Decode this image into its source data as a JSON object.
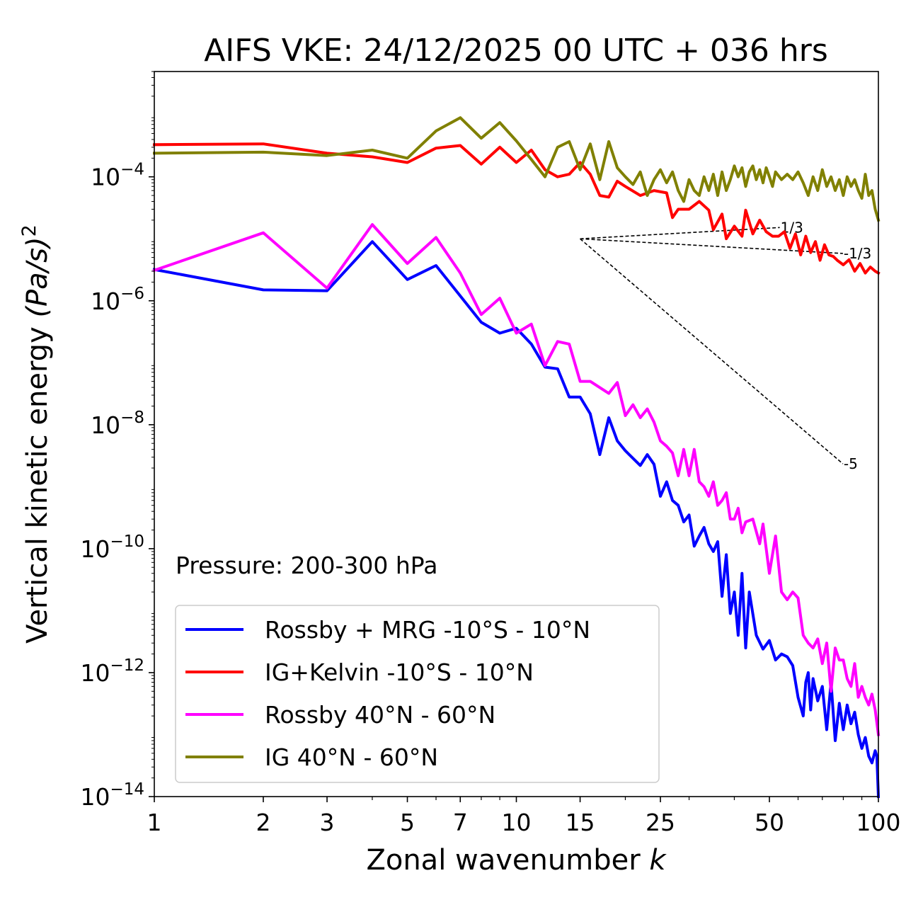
{
  "chart_data": {
    "type": "line",
    "title": "AIFS VKE: 24/12/2025 00 UTC + 036 hrs",
    "xlabel": "Zonal wavenumber",
    "xlabel_var": "k",
    "ylabel": "Vertical kinetic energy",
    "ylabel_unit": "(Pa/s)",
    "ylabel_sup": "2",
    "xscale": "log",
    "yscale": "log",
    "xlim": [
      1,
      100
    ],
    "ylim": [
      1e-14,
      0.005
    ],
    "x_ticks": [
      {
        "value": 1,
        "label": "1"
      },
      {
        "value": 2,
        "label": "2"
      },
      {
        "value": 3,
        "label": "3"
      },
      {
        "value": 5,
        "label": "5"
      },
      {
        "value": 7,
        "label": "7"
      },
      {
        "value": 10,
        "label": "10"
      },
      {
        "value": 15,
        "label": "15"
      },
      {
        "value": 25,
        "label": "25"
      },
      {
        "value": 50,
        "label": "50"
      },
      {
        "value": 100,
        "label": "100"
      }
    ],
    "y_ticks": [
      {
        "value": 1e-14,
        "base": "10",
        "exp": "−14"
      },
      {
        "value": 1e-12,
        "base": "10",
        "exp": "−12"
      },
      {
        "value": 1e-10,
        "base": "10",
        "exp": "−10"
      },
      {
        "value": 1e-08,
        "base": "10",
        "exp": "−8"
      },
      {
        "value": 1e-06,
        "base": "10",
        "exp": "−6"
      },
      {
        "value": 0.0001,
        "base": "10",
        "exp": "−4"
      }
    ],
    "annotation": "Pressure: 200-300 hPa",
    "legend_position": "lower-left",
    "series": [
      {
        "name": "Rossby + MRG -10°S - 10°N",
        "color": "#0000ff",
        "points": [
          [
            1,
            3.2e-06
          ],
          [
            2,
            1.5e-06
          ],
          [
            3,
            1.45e-06
          ],
          [
            4,
            9e-06
          ],
          [
            5,
            2.2e-06
          ],
          [
            6,
            3.7e-06
          ],
          [
            8,
            4.5e-07
          ],
          [
            9,
            3e-07
          ],
          [
            10,
            3.6e-07
          ],
          [
            11,
            2e-07
          ],
          [
            12,
            8.5e-08
          ],
          [
            13,
            8e-08
          ],
          [
            14,
            2.8e-08
          ],
          [
            15,
            2.8e-08
          ],
          [
            16,
            1.5e-08
          ],
          [
            17,
            3.3e-09
          ],
          [
            18,
            1.3e-08
          ],
          [
            19,
            5.5e-09
          ],
          [
            20,
            3.8e-09
          ],
          [
            22,
            2.2e-09
          ],
          [
            23,
            3.3e-09
          ],
          [
            24,
            2.3e-09
          ],
          [
            25,
            7e-10
          ],
          [
            26,
            1.2e-09
          ],
          [
            27,
            6e-10
          ],
          [
            28,
            5e-10
          ],
          [
            29,
            2.7e-10
          ],
          [
            30,
            3.5e-10
          ],
          [
            31,
            1.1e-10
          ],
          [
            32,
            1.6e-10
          ],
          [
            33,
            2.2e-10
          ],
          [
            34,
            1.2e-10
          ],
          [
            35,
            9e-11
          ],
          [
            36,
            1.3e-10
          ],
          [
            37,
            1.7e-11
          ],
          [
            38,
            8e-11
          ],
          [
            39,
            9e-12
          ],
          [
            40,
            2e-11
          ],
          [
            41,
            4e-12
          ],
          [
            42,
            4e-11
          ],
          [
            43,
            2.5e-12
          ],
          [
            44,
            2e-11
          ],
          [
            46,
            4e-12
          ],
          [
            48,
            2.4e-12
          ],
          [
            50,
            3.3e-12
          ],
          [
            52,
            1.6e-12
          ],
          [
            54,
            2e-12
          ],
          [
            56,
            1.8e-12
          ],
          [
            58,
            1.3e-12
          ],
          [
            60,
            4e-13
          ],
          [
            62,
            2e-13
          ],
          [
            63,
            7e-13
          ],
          [
            64,
            1e-12
          ],
          [
            65,
            2.5e-13
          ],
          [
            66,
            8e-13
          ],
          [
            68,
            3.5e-13
          ],
          [
            70,
            6e-13
          ],
          [
            72,
            1.2e-13
          ],
          [
            74,
            7e-13
          ],
          [
            76,
            8e-14
          ],
          [
            78,
            3.2e-13
          ],
          [
            80,
            1.2e-13
          ],
          [
            82,
            3e-13
          ],
          [
            84,
            1.5e-13
          ],
          [
            86,
            2.3e-13
          ],
          [
            88,
            1e-13
          ],
          [
            90,
            6e-14
          ],
          [
            92,
            9e-14
          ],
          [
            94,
            4.5e-14
          ],
          [
            96,
            3.5e-14
          ],
          [
            98,
            5.5e-14
          ],
          [
            99,
            4.5e-14
          ],
          [
            100,
            1e-14
          ]
        ]
      },
      {
        "name": "IG+Kelvin -10°S - 10°N",
        "color": "#ff0000",
        "points": [
          [
            1,
            0.00033
          ],
          [
            2,
            0.00034
          ],
          [
            3,
            0.00024
          ],
          [
            4,
            0.00021
          ],
          [
            5,
            0.00017
          ],
          [
            6,
            0.00029
          ],
          [
            7,
            0.00032
          ],
          [
            8,
            0.00016
          ],
          [
            9,
            0.0003
          ],
          [
            10,
            0.00017
          ],
          [
            11,
            0.00027
          ],
          [
            12,
            0.00013
          ],
          [
            13,
            0.0001
          ],
          [
            14,
            0.00011
          ],
          [
            15,
            0.00017
          ],
          [
            16,
            0.00011
          ],
          [
            17,
            5e-05
          ],
          [
            18,
            4.7e-05
          ],
          [
            19,
            8.5e-05
          ],
          [
            20,
            7e-05
          ],
          [
            22,
            5e-05
          ],
          [
            24,
            6e-05
          ],
          [
            26,
            5.5e-05
          ],
          [
            27,
            2.2e-05
          ],
          [
            28,
            3e-05
          ],
          [
            30,
            3e-05
          ],
          [
            32,
            4e-05
          ],
          [
            34,
            2.9e-05
          ],
          [
            35,
            1.4e-05
          ],
          [
            37,
            2.5e-05
          ],
          [
            38,
            1e-05
          ],
          [
            40,
            1.6e-05
          ],
          [
            42,
            1.1e-05
          ],
          [
            43,
            2.9e-05
          ],
          [
            45,
            1.2e-05
          ],
          [
            47,
            2e-05
          ],
          [
            49,
            1.3e-05
          ],
          [
            51,
            1.1e-05
          ],
          [
            53,
            1.1e-05
          ],
          [
            55,
            1.3e-05
          ],
          [
            57,
            7e-06
          ],
          [
            59,
            1.2e-05
          ],
          [
            61,
            5.5e-06
          ],
          [
            63,
            1.1e-05
          ],
          [
            65,
            6e-06
          ],
          [
            67,
            9e-06
          ],
          [
            69,
            4.5e-06
          ],
          [
            71,
            8e-06
          ],
          [
            73,
            5.5e-06
          ],
          [
            75,
            5.2e-06
          ],
          [
            77,
            4.5e-06
          ],
          [
            80,
            3.8e-06
          ],
          [
            83,
            4.6e-06
          ],
          [
            86,
            3e-06
          ],
          [
            89,
            4e-06
          ],
          [
            92,
            2.8e-06
          ],
          [
            95,
            3.5e-06
          ],
          [
            98,
            3e-06
          ],
          [
            100,
            2.8e-06
          ]
        ]
      },
      {
        "name": "Rossby 40°N - 60°N",
        "color": "#ff00ff",
        "points": [
          [
            1,
            3.1e-06
          ],
          [
            2,
            1.25e-05
          ],
          [
            3,
            1.6e-06
          ],
          [
            4,
            1.7e-05
          ],
          [
            5,
            4e-06
          ],
          [
            6,
            1.05e-05
          ],
          [
            7,
            2.8e-06
          ],
          [
            8,
            6e-07
          ],
          [
            9,
            1.1e-06
          ],
          [
            10,
            3e-07
          ],
          [
            11,
            4.2e-07
          ],
          [
            12,
            9e-08
          ],
          [
            13,
            2.2e-07
          ],
          [
            14,
            2e-07
          ],
          [
            15,
            5e-08
          ],
          [
            16,
            5e-08
          ],
          [
            18,
            3.2e-08
          ],
          [
            19,
            4.8e-08
          ],
          [
            20,
            1.4e-08
          ],
          [
            21,
            2.1e-08
          ],
          [
            22,
            1.3e-08
          ],
          [
            23,
            1.8e-08
          ],
          [
            24,
            1.1e-08
          ],
          [
            25,
            5.5e-09
          ],
          [
            26,
            4.5e-09
          ],
          [
            27,
            3.5e-09
          ],
          [
            28,
            1.5e-09
          ],
          [
            29,
            4e-09
          ],
          [
            30,
            1.5e-09
          ],
          [
            31,
            4e-09
          ],
          [
            32,
            1.2e-09
          ],
          [
            33,
            1e-09
          ],
          [
            34,
            7e-10
          ],
          [
            35,
            1.2e-09
          ],
          [
            36,
            5e-10
          ],
          [
            37,
            6e-10
          ],
          [
            38,
            8e-10
          ],
          [
            39,
            3e-10
          ],
          [
            40,
            3e-10
          ],
          [
            41,
            4.5e-10
          ],
          [
            42,
            1.8e-10
          ],
          [
            43,
            2.7e-10
          ],
          [
            45,
            3e-10
          ],
          [
            47,
            1.2e-10
          ],
          [
            48,
            2.5e-10
          ],
          [
            50,
            4e-11
          ],
          [
            52,
            1.6e-10
          ],
          [
            54,
            2e-11
          ],
          [
            56,
            1.5e-11
          ],
          [
            58,
            2e-11
          ],
          [
            60,
            1.6e-11
          ],
          [
            62,
            4e-12
          ],
          [
            64,
            3e-12
          ],
          [
            66,
            2.5e-12
          ],
          [
            68,
            3.5e-12
          ],
          [
            70,
            1.4e-12
          ],
          [
            72,
            3e-12
          ],
          [
            74,
            5e-13
          ],
          [
            76,
            2.5e-12
          ],
          [
            78,
            1.6e-12
          ],
          [
            80,
            1.6e-12
          ],
          [
            82,
            8e-13
          ],
          [
            84,
            6e-13
          ],
          [
            86,
            1.4e-12
          ],
          [
            88,
            4e-13
          ],
          [
            90,
            6e-13
          ],
          [
            92,
            4e-13
          ],
          [
            94,
            3e-13
          ],
          [
            96,
            4.5e-13
          ],
          [
            98,
            2.5e-13
          ],
          [
            100,
            1e-13
          ]
        ]
      },
      {
        "name": "IG 40°N - 60°N",
        "color": "#808000",
        "points": [
          [
            1,
            0.00024
          ],
          [
            2,
            0.00025
          ],
          [
            3,
            0.00022
          ],
          [
            4,
            0.00027
          ],
          [
            5,
            0.0002
          ],
          [
            6,
            0.00055
          ],
          [
            7,
            0.0009
          ],
          [
            8,
            0.00042
          ],
          [
            9,
            0.00075
          ],
          [
            10,
            0.00038
          ],
          [
            11,
            0.00019
          ],
          [
            12,
            0.0001
          ],
          [
            13,
            0.0003
          ],
          [
            14,
            0.00037
          ],
          [
            15,
            0.00013
          ],
          [
            16,
            0.00034
          ],
          [
            17,
            9e-05
          ],
          [
            18,
            0.00037
          ],
          [
            19,
            0.00014
          ],
          [
            20,
            0.0001
          ],
          [
            21,
            7.5e-05
          ],
          [
            22,
            0.00012
          ],
          [
            23,
            5e-05
          ],
          [
            24,
            9e-05
          ],
          [
            25,
            0.00013
          ],
          [
            26,
            8e-05
          ],
          [
            27,
            0.00012
          ],
          [
            28,
            6e-05
          ],
          [
            29,
            4e-05
          ],
          [
            30,
            9e-05
          ],
          [
            31,
            6e-05
          ],
          [
            32,
            5e-05
          ],
          [
            33,
            0.0001
          ],
          [
            34,
            6e-05
          ],
          [
            35,
            0.00011
          ],
          [
            36,
            5e-05
          ],
          [
            37,
            0.00012
          ],
          [
            38,
            6e-05
          ],
          [
            39,
            9e-05
          ],
          [
            40,
            0.00015
          ],
          [
            41,
            0.0001
          ],
          [
            42,
            0.00014
          ],
          [
            43,
            7e-05
          ],
          [
            44,
            0.00012
          ],
          [
            45,
            0.00015
          ],
          [
            46,
            9e-05
          ],
          [
            47,
            0.00013
          ],
          [
            48,
            8e-05
          ],
          [
            49,
            0.00014
          ],
          [
            50,
            0.0001
          ],
          [
            51,
            7e-05
          ],
          [
            52,
            0.00012
          ],
          [
            54,
            9e-05
          ],
          [
            56,
            0.00011
          ],
          [
            58,
            9e-05
          ],
          [
            60,
            0.00012
          ],
          [
            62,
            8e-05
          ],
          [
            64,
            5e-05
          ],
          [
            66,
            0.0001
          ],
          [
            68,
            6e-05
          ],
          [
            70,
            0.00013
          ],
          [
            72,
            7e-05
          ],
          [
            74,
            0.0001
          ],
          [
            76,
            6e-05
          ],
          [
            78,
            9e-05
          ],
          [
            80,
            5e-05
          ],
          [
            82,
            0.0001
          ],
          [
            84,
            7e-05
          ],
          [
            86,
            9e-05
          ],
          [
            88,
            6e-05
          ],
          [
            90,
            4.5e-05
          ],
          [
            92,
            0.00011
          ],
          [
            94,
            5e-05
          ],
          [
            96,
            6e-05
          ],
          [
            98,
            3e-05
          ],
          [
            100,
            2e-05
          ]
        ]
      }
    ],
    "reference_lines": [
      {
        "label": "1/3",
        "origin": [
          15,
          1e-05
        ],
        "end": [
          53.4,
          1.52e-05
        ]
      },
      {
        "label": "-1/3",
        "origin": [
          15,
          1e-05
        ],
        "end": [
          79.8,
          5.8e-06
        ]
      },
      {
        "label": "-5",
        "origin": [
          15,
          1e-05
        ],
        "end": [
          79.8,
          2.34e-09
        ]
      }
    ]
  }
}
